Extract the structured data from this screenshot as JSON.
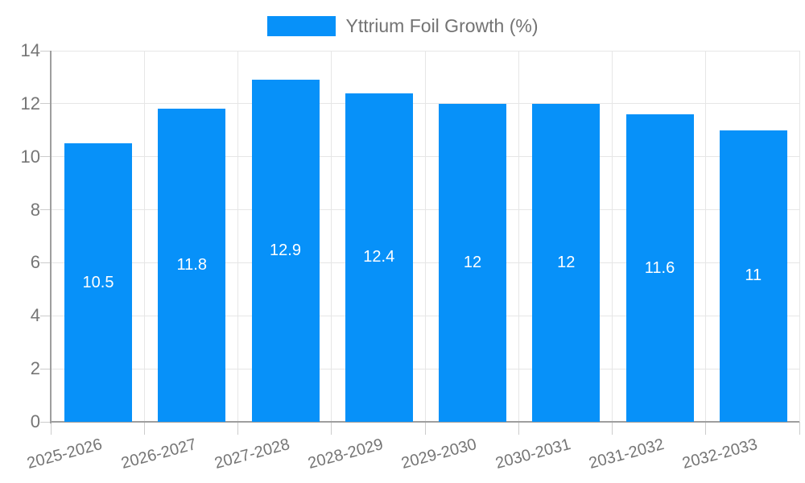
{
  "legend": {
    "label": "Yttrium Foil Growth (%)"
  },
  "chart_data": {
    "type": "bar",
    "title": "",
    "categories": [
      "2025-2026",
      "2026-2027",
      "2027-2028",
      "2028-2029",
      "2029-2030",
      "2030-2031",
      "2031-2032",
      "2032-2033"
    ],
    "series": [
      {
        "name": "Yttrium Foil Growth (%)",
        "values": [
          10.5,
          11.8,
          12.9,
          12.4,
          12,
          12,
          11.6,
          11
        ]
      }
    ],
    "bar_labels": [
      "10.5",
      "11.8",
      "12.9",
      "12.4",
      "12",
      "12",
      "11.6",
      "11"
    ],
    "xlabel": "",
    "ylabel": "",
    "ylim": [
      0,
      14
    ],
    "yticks": [
      0,
      2,
      4,
      6,
      8,
      10,
      12,
      14
    ],
    "grid": true,
    "legend_position": "top",
    "colors": {
      "bar": "#0791f9",
      "grid": "#e6e6e6",
      "axis_line": "#9e9e9e",
      "tick": "#cccccc",
      "axis_text": "#757575",
      "legend_text": "#737373",
      "bar_label": "#ffffff",
      "background": "#ffffff"
    }
  }
}
